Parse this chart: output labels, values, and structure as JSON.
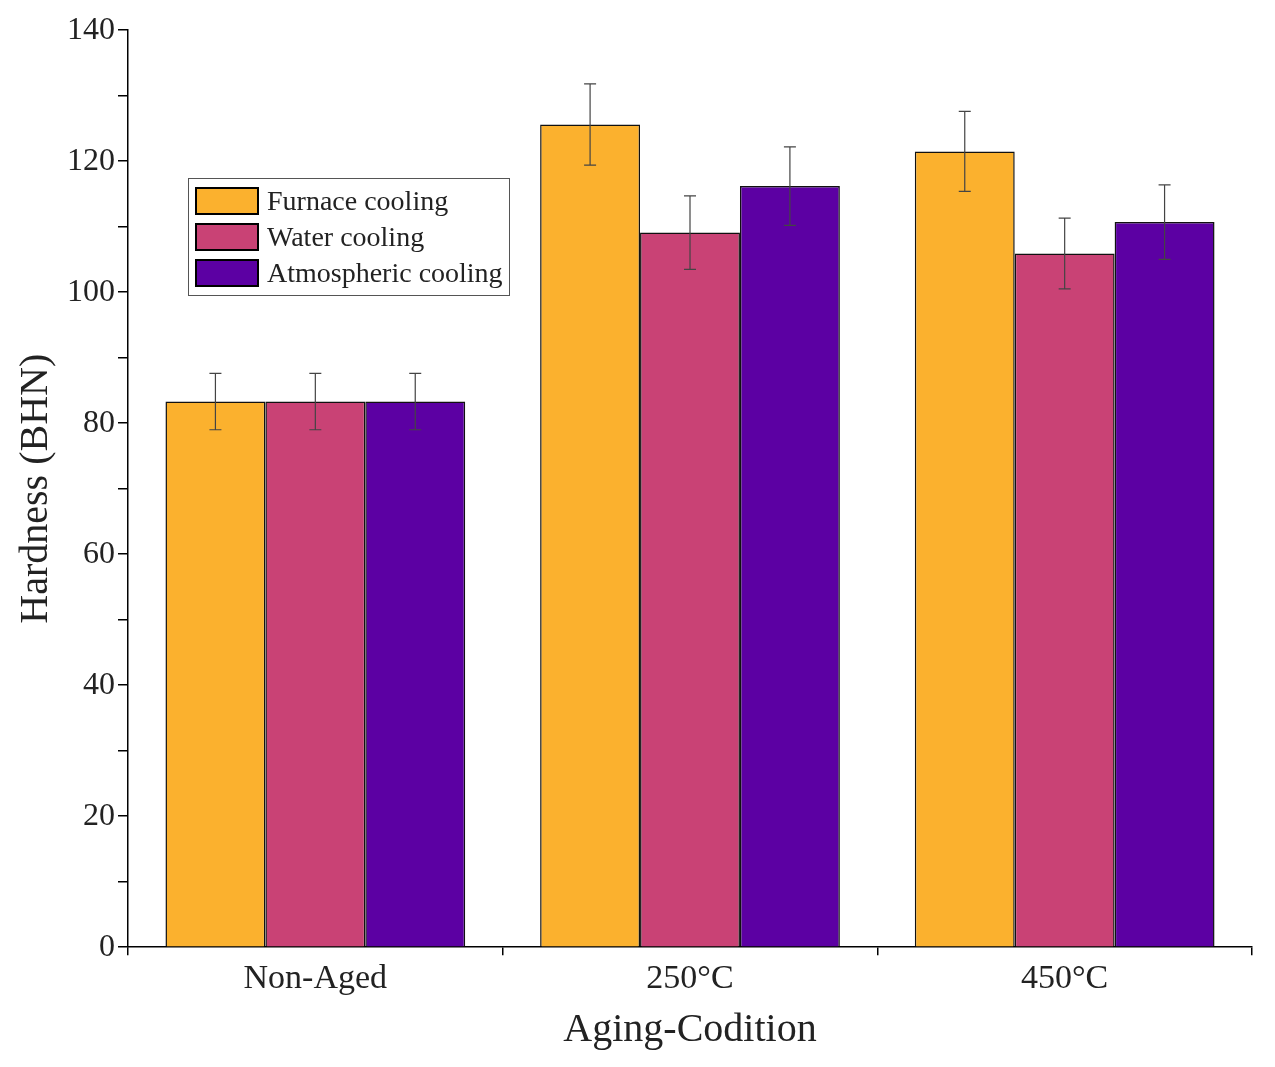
{
  "chart_data": {
    "type": "bar",
    "xlabel": "Aging-Codition",
    "ylabel": "Hardness (BHN)",
    "categories": [
      "Non-Aged",
      "250°C",
      "450°C"
    ],
    "series": [
      {
        "name": "Furnace cooling",
        "color": "#fbb12e",
        "values": [
          83.3,
          125.6,
          121.5
        ],
        "errors": [
          4.3,
          6.2,
          6.1
        ]
      },
      {
        "name": "Water cooling",
        "color": "#c94275",
        "values": [
          83.3,
          109.1,
          105.9
        ],
        "errors": [
          4.3,
          5.6,
          5.4
        ]
      },
      {
        "name": "Atmospheric cooling",
        "color": "#5c00a3",
        "values": [
          83.3,
          116.2,
          110.7
        ],
        "errors": [
          4.3,
          6.0,
          5.7
        ]
      }
    ],
    "ylim": [
      0,
      140
    ],
    "yticks": [
      0,
      {
        "value": 10,
        "label": null
      },
      20,
      {
        "value": 30,
        "label": null
      },
      40,
      {
        "value": 50,
        "label": null
      },
      60,
      {
        "value": 70,
        "label": null
      },
      80,
      {
        "value": 90,
        "label": null
      },
      100,
      {
        "value": 110,
        "label": null
      },
      120,
      {
        "value": 130,
        "label": null
      },
      140
    ],
    "grid": false,
    "legend": "top left"
  }
}
